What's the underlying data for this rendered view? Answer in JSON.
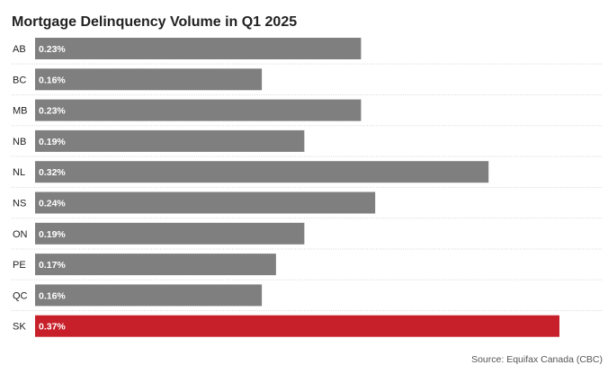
{
  "chart_data": {
    "type": "bar",
    "orientation": "horizontal",
    "title": "Mortgage Delinquency Volume in Q1 2025",
    "categories": [
      "AB",
      "BC",
      "MB",
      "NB",
      "NL",
      "NS",
      "ON",
      "PE",
      "QC",
      "SK"
    ],
    "values": [
      0.23,
      0.16,
      0.23,
      0.19,
      0.32,
      0.24,
      0.19,
      0.17,
      0.16,
      0.37
    ],
    "value_labels": [
      "0.23%",
      "0.16%",
      "0.23%",
      "0.19%",
      "0.32%",
      "0.24%",
      "0.19%",
      "0.17%",
      "0.16%",
      "0.37%"
    ],
    "unit": "%",
    "highlight_category": "SK",
    "xlim": [
      0,
      0.37
    ],
    "grid": false,
    "legend": "none",
    "source": "Source: Equifax Canada (CBC)"
  },
  "colors": {
    "bar": "#7f7f7f",
    "highlight": "#c8202a",
    "title": "#222222",
    "value_label": "#ffffff",
    "separator": "#d6d6d6"
  }
}
